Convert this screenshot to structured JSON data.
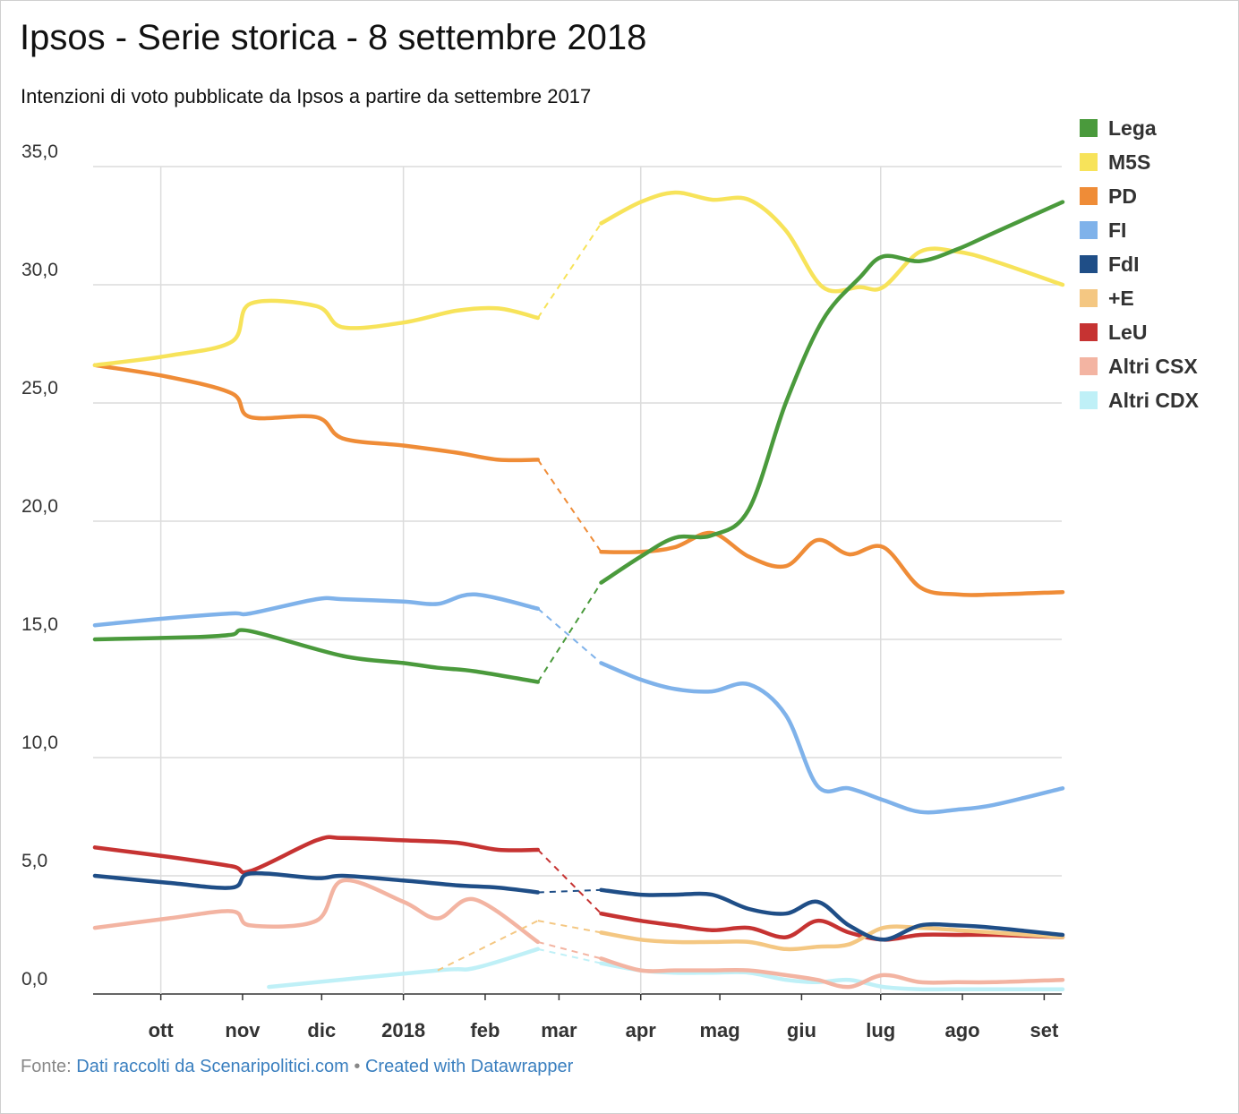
{
  "header": {
    "title": "Ipsos - Serie storica - 8 settembre 2018",
    "subtitle": "Intenzioni di voto pubblicate da Ipsos a partire da settembre 2017"
  },
  "footer": {
    "source_label": "Fonte:",
    "source_link": "Dati raccolti da Scenaripolitici.com",
    "separator": "•",
    "created_link": "Created with Datawrapper"
  },
  "chart_data": {
    "type": "line",
    "title": "Ipsos - Serie storica - 8 settembre 2018",
    "subtitle": "Intenzioni di voto pubblicate da Ipsos a partire da settembre 2017",
    "xlabel": "",
    "ylabel": "",
    "x_type": "date",
    "x_range": [
      "2017-09-06",
      "2018-09-08"
    ],
    "ylim": [
      0,
      35
    ],
    "y_ticks": [
      "0,0",
      "5,0",
      "10,0",
      "15,0",
      "20,0",
      "25,0",
      "30,0",
      "35,0"
    ],
    "y_tick_values": [
      0,
      5,
      10,
      15,
      20,
      25,
      30,
      35
    ],
    "x_ticks": [
      {
        "label": "ott",
        "date": "2017-10-01"
      },
      {
        "label": "nov",
        "date": "2017-11-01"
      },
      {
        "label": "dic",
        "date": "2017-12-01"
      },
      {
        "label": "2018",
        "date": "2018-01-01"
      },
      {
        "label": "feb",
        "date": "2018-02-01"
      },
      {
        "label": "mar",
        "date": "2018-03-01"
      },
      {
        "label": "apr",
        "date": "2018-04-01"
      },
      {
        "label": "mag",
        "date": "2018-05-01"
      },
      {
        "label": "giu",
        "date": "2018-06-01"
      },
      {
        "label": "lug",
        "date": "2018-07-01"
      },
      {
        "label": "ago",
        "date": "2018-08-01"
      },
      {
        "label": "set",
        "date": "2018-09-01"
      }
    ],
    "grid": true,
    "legend_position": "right",
    "gap_style": "dashed",
    "series": [
      {
        "name": "Lega",
        "color": "#4a9a3c",
        "points": [
          [
            "2017-09-06",
            15.0
          ],
          [
            "2017-10-15",
            15.1
          ],
          [
            "2017-10-28",
            15.2
          ],
          [
            "2017-11-04",
            15.35
          ],
          [
            "2017-12-09",
            14.3
          ],
          [
            "2018-01-01",
            14.0
          ],
          [
            "2018-01-14",
            13.8
          ],
          [
            "2018-01-28",
            13.65
          ],
          [
            "2018-02-21",
            13.2
          ],
          null,
          [
            "2018-03-17",
            17.4
          ],
          [
            "2018-04-01",
            18.5
          ],
          [
            "2018-04-14",
            19.3
          ],
          [
            "2018-04-28",
            19.4
          ],
          [
            "2018-05-12",
            20.5
          ],
          [
            "2018-05-26",
            25.0
          ],
          [
            "2018-06-09",
            28.5
          ],
          [
            "2018-06-23",
            30.3
          ],
          [
            "2018-07-02",
            31.2
          ],
          [
            "2018-07-16",
            31.0
          ],
          [
            "2018-07-30",
            31.5
          ],
          [
            "2018-08-13",
            32.2
          ],
          [
            "2018-09-08",
            33.5
          ]
        ]
      },
      {
        "name": "M5S",
        "color": "#f7e35a",
        "points": [
          [
            "2017-09-06",
            26.6
          ],
          [
            "2017-10-04",
            27.0
          ],
          [
            "2017-10-28",
            27.6
          ],
          [
            "2017-11-04",
            29.2
          ],
          [
            "2017-11-29",
            29.1
          ],
          [
            "2017-12-09",
            28.2
          ],
          [
            "2018-01-01",
            28.4
          ],
          [
            "2018-01-21",
            28.9
          ],
          [
            "2018-02-06",
            29.0
          ],
          [
            "2018-02-21",
            28.6
          ],
          null,
          [
            "2018-03-17",
            32.6
          ],
          [
            "2018-04-01",
            33.5
          ],
          [
            "2018-04-14",
            33.9
          ],
          [
            "2018-04-28",
            33.6
          ],
          [
            "2018-05-12",
            33.6
          ],
          [
            "2018-05-26",
            32.3
          ],
          [
            "2018-06-09",
            29.9
          ],
          [
            "2018-06-23",
            29.9
          ],
          [
            "2018-07-02",
            29.9
          ],
          [
            "2018-07-16",
            31.4
          ],
          [
            "2018-07-30",
            31.4
          ],
          [
            "2018-08-13",
            31.0
          ],
          [
            "2018-09-08",
            30.0
          ]
        ]
      },
      {
        "name": "PD",
        "color": "#ef8c37",
        "points": [
          [
            "2017-09-06",
            26.6
          ],
          [
            "2017-10-04",
            26.1
          ],
          [
            "2017-10-28",
            25.4
          ],
          [
            "2017-11-04",
            24.4
          ],
          [
            "2017-11-29",
            24.4
          ],
          [
            "2017-12-09",
            23.5
          ],
          [
            "2018-01-01",
            23.2
          ],
          [
            "2018-01-21",
            22.9
          ],
          [
            "2018-02-06",
            22.6
          ],
          [
            "2018-02-21",
            22.6
          ],
          null,
          [
            "2018-03-17",
            18.7
          ],
          [
            "2018-04-01",
            18.7
          ],
          [
            "2018-04-14",
            18.9
          ],
          [
            "2018-04-28",
            19.5
          ],
          [
            "2018-05-12",
            18.5
          ],
          [
            "2018-05-26",
            18.1
          ],
          [
            "2018-06-07",
            19.2
          ],
          [
            "2018-06-19",
            18.6
          ],
          [
            "2018-07-02",
            18.9
          ],
          [
            "2018-07-16",
            17.2
          ],
          [
            "2018-07-30",
            16.9
          ],
          [
            "2018-08-13",
            16.9
          ],
          [
            "2018-09-08",
            17.0
          ]
        ]
      },
      {
        "name": "FI",
        "color": "#7fb2ea",
        "points": [
          [
            "2017-09-06",
            15.6
          ],
          [
            "2017-10-04",
            15.9
          ],
          [
            "2017-10-28",
            16.1
          ],
          [
            "2017-11-04",
            16.1
          ],
          [
            "2017-11-29",
            16.7
          ],
          [
            "2017-12-09",
            16.7
          ],
          [
            "2018-01-01",
            16.6
          ],
          [
            "2018-01-14",
            16.5
          ],
          [
            "2018-01-28",
            16.9
          ],
          [
            "2018-02-21",
            16.3
          ],
          null,
          [
            "2018-03-17",
            14.0
          ],
          [
            "2018-04-01",
            13.3
          ],
          [
            "2018-04-14",
            12.9
          ],
          [
            "2018-04-28",
            12.8
          ],
          [
            "2018-05-12",
            13.1
          ],
          [
            "2018-05-26",
            11.8
          ],
          [
            "2018-06-07",
            8.8
          ],
          [
            "2018-06-19",
            8.7
          ],
          [
            "2018-07-02",
            8.2
          ],
          [
            "2018-07-16",
            7.7
          ],
          [
            "2018-07-30",
            7.8
          ],
          [
            "2018-08-13",
            8.0
          ],
          [
            "2018-09-08",
            8.7
          ]
        ]
      },
      {
        "name": "FdI",
        "color": "#1f4e87",
        "points": [
          [
            "2017-09-06",
            5.0
          ],
          [
            "2017-10-04",
            4.7
          ],
          [
            "2017-10-28",
            4.5
          ],
          [
            "2017-11-04",
            5.1
          ],
          [
            "2017-11-29",
            4.9
          ],
          [
            "2017-12-09",
            5.0
          ],
          [
            "2018-01-01",
            4.8
          ],
          [
            "2018-01-21",
            4.6
          ],
          [
            "2018-02-06",
            4.5
          ],
          [
            "2018-02-21",
            4.3
          ],
          null,
          [
            "2018-03-17",
            4.4
          ],
          [
            "2018-04-01",
            4.2
          ],
          [
            "2018-04-14",
            4.2
          ],
          [
            "2018-04-28",
            4.2
          ],
          [
            "2018-05-12",
            3.6
          ],
          [
            "2018-05-26",
            3.4
          ],
          [
            "2018-06-07",
            3.9
          ],
          [
            "2018-06-19",
            2.9
          ],
          [
            "2018-07-02",
            2.3
          ],
          [
            "2018-07-16",
            2.9
          ],
          [
            "2018-07-30",
            2.9
          ],
          [
            "2018-08-13",
            2.8
          ],
          [
            "2018-09-08",
            2.5
          ]
        ]
      },
      {
        "name": "+E",
        "color": "#f4c782",
        "points": [
          [
            "2018-01-14",
            1.0
          ],
          [
            "2018-02-21",
            3.1
          ],
          null,
          [
            "2018-03-17",
            2.6
          ],
          [
            "2018-04-01",
            2.3
          ],
          [
            "2018-04-14",
            2.2
          ],
          [
            "2018-04-28",
            2.2
          ],
          [
            "2018-05-12",
            2.2
          ],
          [
            "2018-05-26",
            1.9
          ],
          [
            "2018-06-07",
            2.0
          ],
          [
            "2018-06-19",
            2.1
          ],
          [
            "2018-07-02",
            2.8
          ],
          [
            "2018-07-16",
            2.8
          ],
          [
            "2018-07-30",
            2.7
          ],
          [
            "2018-08-13",
            2.6
          ],
          [
            "2018-09-08",
            2.4
          ]
        ]
      },
      {
        "name": "LeU",
        "color": "#c63332",
        "points": [
          [
            "2017-09-06",
            6.2
          ],
          [
            "2017-10-04",
            5.8
          ],
          [
            "2017-10-28",
            5.4
          ],
          [
            "2017-11-04",
            5.2
          ],
          [
            "2017-11-29",
            6.5
          ],
          [
            "2017-12-09",
            6.6
          ],
          [
            "2018-01-01",
            6.5
          ],
          [
            "2018-01-21",
            6.4
          ],
          [
            "2018-02-06",
            6.1
          ],
          [
            "2018-02-21",
            6.1
          ],
          null,
          [
            "2018-03-17",
            3.4
          ],
          [
            "2018-04-01",
            3.1
          ],
          [
            "2018-04-14",
            2.9
          ],
          [
            "2018-04-28",
            2.7
          ],
          [
            "2018-05-12",
            2.8
          ],
          [
            "2018-05-26",
            2.4
          ],
          [
            "2018-06-07",
            3.1
          ],
          [
            "2018-06-19",
            2.6
          ],
          [
            "2018-07-02",
            2.3
          ],
          [
            "2018-07-16",
            2.5
          ],
          [
            "2018-07-30",
            2.5
          ],
          [
            "2018-08-13",
            2.5
          ],
          [
            "2018-09-08",
            2.4
          ]
        ]
      },
      {
        "name": "Altri CSX",
        "color": "#f3b4a2",
        "points": [
          [
            "2017-09-06",
            2.8
          ],
          [
            "2017-10-04",
            3.2
          ],
          [
            "2017-10-28",
            3.5
          ],
          [
            "2017-11-04",
            2.9
          ],
          [
            "2017-11-29",
            3.1
          ],
          [
            "2017-12-09",
            4.8
          ],
          [
            "2018-01-01",
            3.9
          ],
          [
            "2018-01-14",
            3.2
          ],
          [
            "2018-01-28",
            4.0
          ],
          [
            "2018-02-21",
            2.2
          ],
          null,
          [
            "2018-03-17",
            1.5
          ],
          [
            "2018-04-01",
            1.0
          ],
          [
            "2018-04-14",
            1.0
          ],
          [
            "2018-04-28",
            1.0
          ],
          [
            "2018-05-12",
            1.0
          ],
          [
            "2018-05-26",
            0.8
          ],
          [
            "2018-06-07",
            0.6
          ],
          [
            "2018-06-19",
            0.3
          ],
          [
            "2018-07-02",
            0.8
          ],
          [
            "2018-07-16",
            0.5
          ],
          [
            "2018-07-30",
            0.5
          ],
          [
            "2018-08-13",
            0.5
          ],
          [
            "2018-09-08",
            0.6
          ]
        ]
      },
      {
        "name": "Altri CDX",
        "color": "#bff0f7",
        "points": [
          [
            "2017-11-11",
            0.3
          ],
          [
            "2018-01-14",
            1.0
          ],
          [
            "2018-01-28",
            1.1
          ],
          [
            "2018-02-21",
            1.9
          ],
          null,
          [
            "2018-03-17",
            1.3
          ],
          [
            "2018-04-01",
            1.0
          ],
          [
            "2018-04-14",
            0.9
          ],
          [
            "2018-04-28",
            0.9
          ],
          [
            "2018-05-12",
            0.9
          ],
          [
            "2018-05-26",
            0.6
          ],
          [
            "2018-06-07",
            0.5
          ],
          [
            "2018-06-19",
            0.6
          ],
          [
            "2018-07-02",
            0.3
          ],
          [
            "2018-07-16",
            0.2
          ],
          [
            "2018-07-30",
            0.2
          ],
          [
            "2018-08-13",
            0.2
          ],
          [
            "2018-09-08",
            0.2
          ]
        ]
      }
    ]
  }
}
